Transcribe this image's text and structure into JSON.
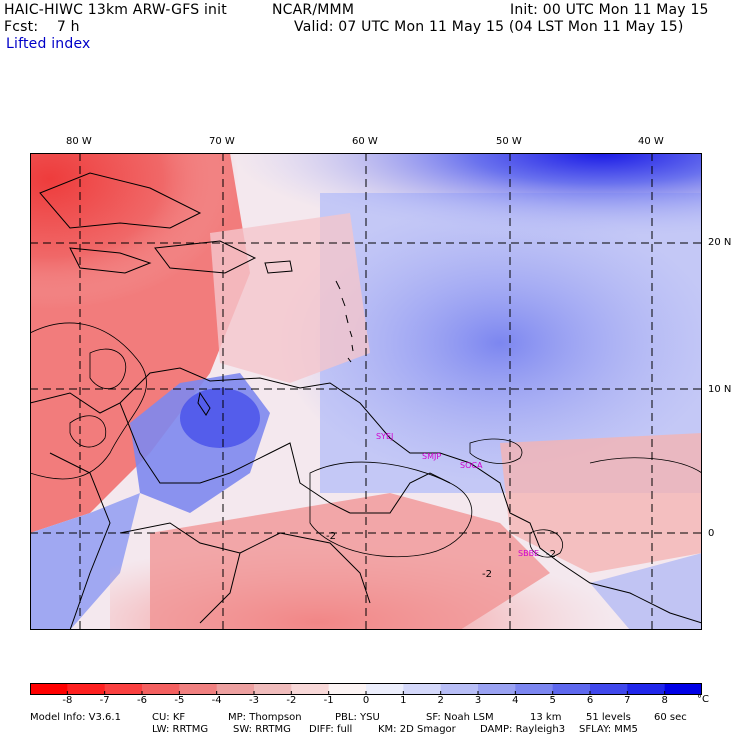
{
  "header": {
    "title": "HAIC-HIWC 13km ARW-GFS init",
    "org": "NCAR/MMM",
    "init": "Init: 00 UTC Mon 11 May 15",
    "fcst": "Fcst:    7 h",
    "valid": "Valid: 07 UTC Mon 11 May 15 (04 LST Mon 11 May 15)",
    "field": "Lifted index"
  },
  "map": {
    "lon_labels": [
      "80 W",
      "70 W",
      "60 W",
      "50 W",
      "40 W"
    ],
    "lat_labels": [
      "20 N",
      "10 N",
      "0"
    ],
    "stations": [
      "SYEJ",
      "SMJP",
      "SOCA",
      "SBBE"
    ],
    "contour_labels": [
      "-2",
      "-2",
      "-2"
    ],
    "colors": {
      "strong_red": "#f03c3c",
      "red": "#f07070",
      "light_red": "#f8c0c0",
      "neutral": "#f8f0f4",
      "light_blue": "#d4d8f8",
      "blue": "#9098f0",
      "strong_blue": "#1a1ae6",
      "station_text": "#d000d0"
    }
  },
  "colorbar": {
    "ticks": [
      "-8",
      "-7",
      "-6",
      "-5",
      "-4",
      "-3",
      "-2",
      "-1",
      "0",
      "1",
      "2",
      "3",
      "4",
      "5",
      "6",
      "7",
      "8"
    ],
    "unit": "°C",
    "colors": [
      "#ff0000",
      "#fe2020",
      "#fa4040",
      "#f46060",
      "#f08080",
      "#eda0a0",
      "#f0bcbc",
      "#f8d8d8",
      "#fcf4f4",
      "#eceefc",
      "#d4d8fa",
      "#b8bef6",
      "#9aa2f2",
      "#7c86f0",
      "#5e68ee",
      "#4048ec",
      "#2026ea",
      "#0000e6"
    ]
  },
  "footer": {
    "line1": [
      "Model Info: V3.6.1",
      "CU: KF",
      "MP: Thompson",
      "PBL: YSU",
      "SF: Noah LSM",
      "13 km",
      "51 levels",
      "60 sec"
    ],
    "line2": [
      "LW: RRTMG",
      "SW: RRTMG",
      "DIFF: full",
      "KM: 2D Smagor",
      "DAMP: Rayleigh3",
      "SFLAY: MM5"
    ]
  }
}
